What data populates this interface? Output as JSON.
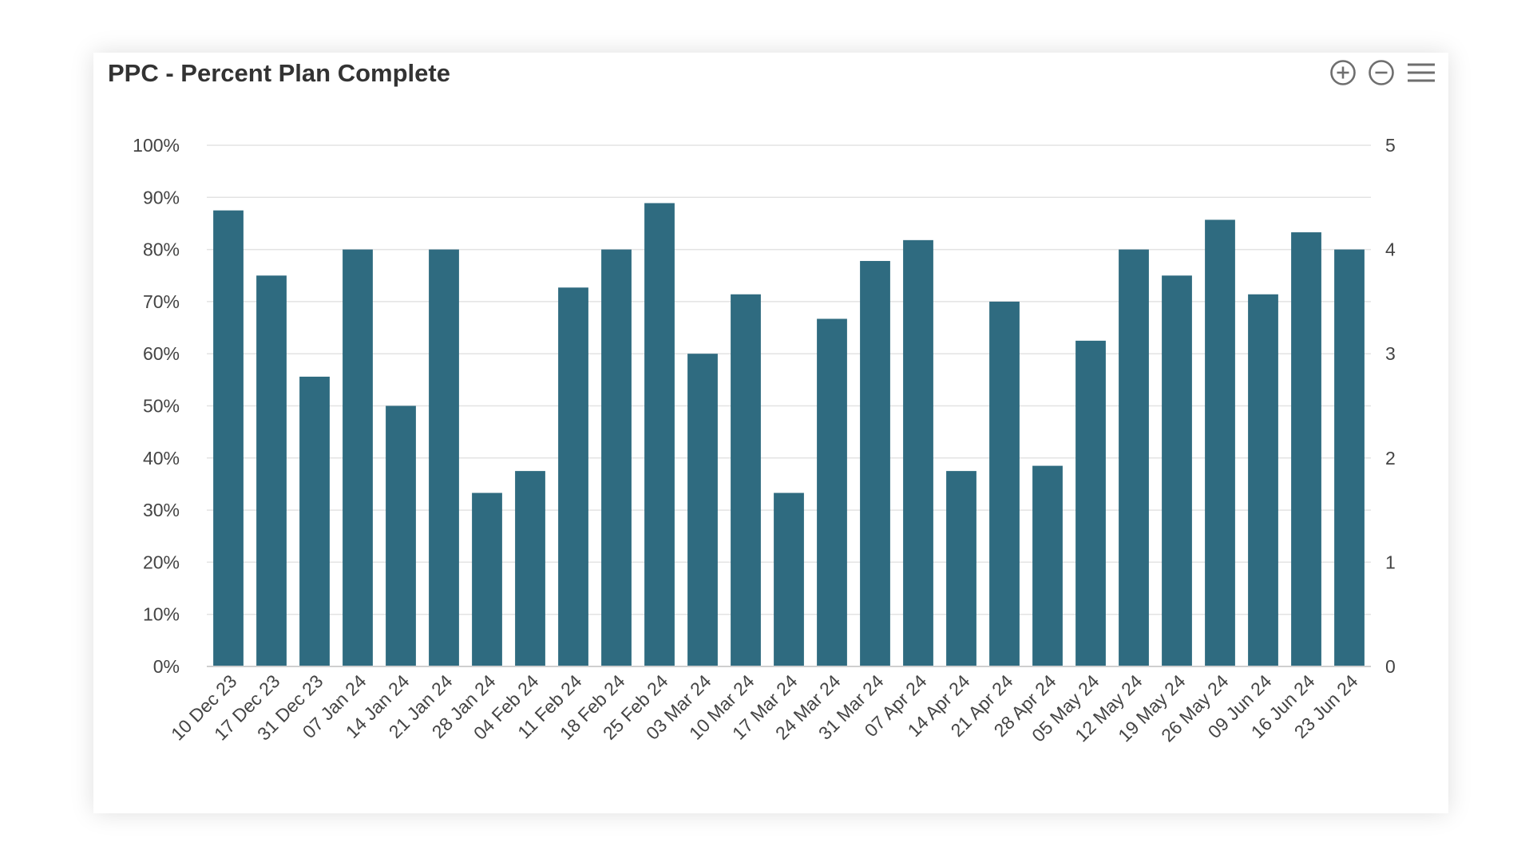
{
  "chart_data": {
    "type": "bar",
    "title": "PPC - Percent Plan Complete",
    "xlabel": "",
    "ylabel": "",
    "color": "#2f6b80",
    "grid": true,
    "legend": "none",
    "ylim": [
      0,
      100
    ],
    "y_ticks": [
      "0%",
      "10%",
      "20%",
      "30%",
      "40%",
      "50%",
      "60%",
      "70%",
      "80%",
      "90%",
      "100%"
    ],
    "y2lim": [
      0,
      5
    ],
    "y2_ticks": [
      "0",
      "1",
      "2",
      "3",
      "4",
      "5"
    ],
    "categories": [
      "10 Dec 23",
      "17 Dec 23",
      "31 Dec 23",
      "07 Jan 24",
      "14 Jan 24",
      "21 Jan 24",
      "28 Jan 24",
      "04 Feb 24",
      "11 Feb 24",
      "18 Feb 24",
      "25 Feb 24",
      "03 Mar 24",
      "10 Mar 24",
      "17 Mar 24",
      "24 Mar 24",
      "31 Mar 24",
      "07 Apr 24",
      "14 Apr 24",
      "21 Apr 24",
      "28 Apr 24",
      "05 May 24",
      "12 May 24",
      "19 May 24",
      "26 May 24",
      "09 Jun 24",
      "16 Jun 24",
      "23 Jun 24"
    ],
    "values": [
      87.5,
      75,
      55.6,
      80,
      50,
      80,
      33.3,
      37.5,
      72.7,
      80,
      88.9,
      60,
      71.4,
      33.3,
      66.7,
      77.8,
      81.8,
      37.5,
      70,
      38.5,
      62.5,
      80,
      75,
      85.7,
      71.4,
      83.3,
      80
    ]
  },
  "toolbar": {
    "zoom_in_icon": "plus-circle-icon",
    "zoom_out_icon": "minus-circle-icon",
    "menu_icon": "hamburger-menu-icon"
  }
}
